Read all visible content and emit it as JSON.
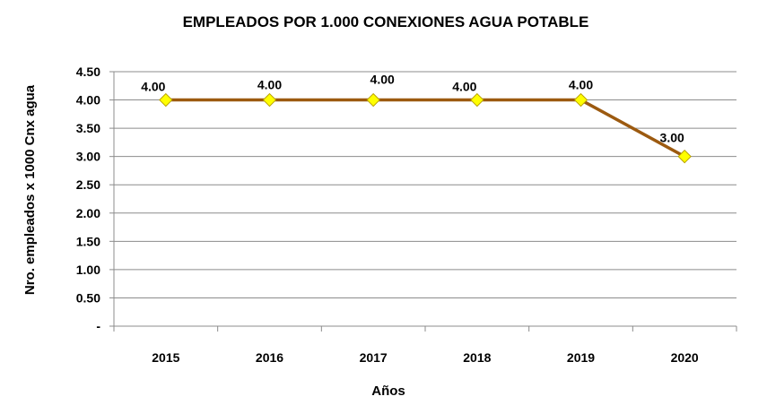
{
  "chart_data": {
    "type": "line",
    "title": "EMPLEADOS POR 1.000 CONEXIONES AGUA POTABLE",
    "xlabel": "Años",
    "ylabel": "Nro. empleados x 1000 Cnx agua",
    "categories": [
      "2015",
      "2016",
      "2017",
      "2018",
      "2019",
      "2020"
    ],
    "series": [
      {
        "values": [
          4.0,
          4.0,
          4.0,
          4.0,
          4.0,
          3.0
        ]
      }
    ],
    "data_labels": [
      "4.00",
      "4.00",
      "4.00",
      "4.00",
      "4.00",
      "3.00"
    ],
    "yticks": [
      0,
      0.5,
      1.0,
      1.5,
      2.0,
      2.5,
      3.0,
      3.5,
      4.0,
      4.5
    ],
    "ytick_labels": [
      "-",
      "0.50",
      "1.00",
      "1.50",
      "2.00",
      "2.50",
      "3.00",
      "3.50",
      "4.00",
      "4.50"
    ],
    "ylim": [
      0,
      4.5
    ],
    "grid": true,
    "legend": "none",
    "colors": {
      "line": "#9c5a10",
      "marker_fill": "#ffff00",
      "marker_stroke": "#b8a000"
    }
  }
}
